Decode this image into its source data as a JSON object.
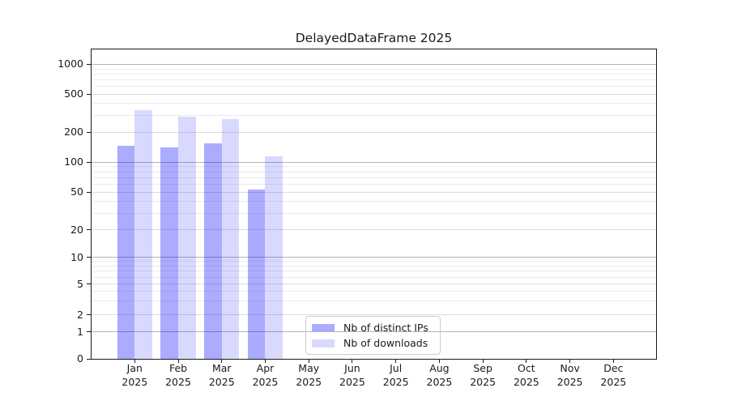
{
  "title": "DelayedDataFrame 2025",
  "chart_data": {
    "type": "bar",
    "title": "DelayedDataFrame 2025",
    "x_tick_months": [
      "Jan",
      "Feb",
      "Mar",
      "Apr",
      "May",
      "Jun",
      "Jul",
      "Aug",
      "Sep",
      "Oct",
      "Nov",
      "Dec"
    ],
    "x_tick_year": "2025",
    "series": [
      {
        "name": "Nb of distinct IPs",
        "color": "#0000ff54",
        "values": [
          146,
          140,
          154,
          53,
          null,
          null,
          null,
          null,
          null,
          null,
          null,
          null
        ]
      },
      {
        "name": "Nb of downloads",
        "color": "#0000ff26",
        "values": [
          341,
          289,
          273,
          115,
          null,
          null,
          null,
          null,
          null,
          null,
          null,
          null
        ]
      }
    ],
    "yscale": "symlog",
    "ylim": [
      0,
      1420
    ],
    "yticks": [
      0,
      1,
      2,
      5,
      10,
      20,
      50,
      100,
      200,
      500,
      1000
    ],
    "major_decade_ticks": [
      1,
      10,
      100,
      1000
    ],
    "minor_unlabeled_ticks": [
      3,
      4,
      6,
      7,
      8,
      9,
      30,
      40,
      60,
      70,
      80,
      90,
      300,
      400,
      600,
      700,
      800,
      900
    ],
    "grid": "both",
    "legend_position": "lower-center"
  },
  "colors": {
    "bar_distinct_ips": "#abABf8",
    "bar_downloads": "#d9d9fb",
    "grid_major": "#b5b5b5",
    "grid_mid": "#dcdcdc",
    "grid_minor": "#ebebeb",
    "spine": "#1a1a1a",
    "text": "#1a1a1a"
  }
}
